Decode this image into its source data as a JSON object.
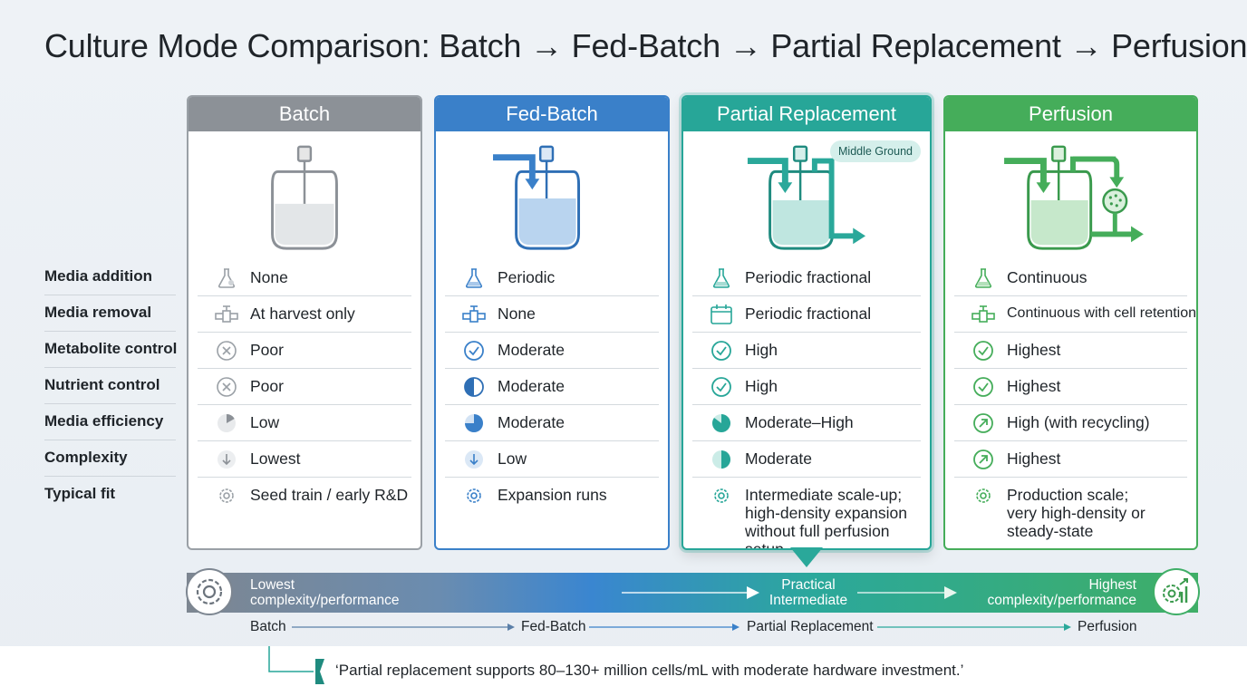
{
  "title": "Culture Mode Comparison: Batch → Fed-Batch → Partial Replacement → Perfusion",
  "row_labels": [
    "Media addition",
    "Media removal",
    "Metabolite control",
    "Nutrient control",
    "Media efficiency",
    "Complexity",
    "Typical fit"
  ],
  "colors": {
    "batch": "#8c9197",
    "fed_batch": "#3a80c9",
    "partial": "#27a698",
    "perfusion": "#45ad5a"
  },
  "columns": [
    {
      "name": "Batch",
      "cells": [
        {
          "icon": "flask-icon",
          "text": "None"
        },
        {
          "icon": "valve-icon",
          "text": "At harvest only"
        },
        {
          "icon": "x-circle-icon",
          "text": "Poor"
        },
        {
          "icon": "x-circle-icon",
          "text": "Poor"
        },
        {
          "icon": "pie-low-icon",
          "text": "Low"
        },
        {
          "icon": "arrow-down-icon",
          "text": "Lowest"
        },
        {
          "icon": "gear-icon",
          "text": "Seed train / early R&D"
        }
      ]
    },
    {
      "name": "Fed-Batch",
      "cells": [
        {
          "icon": "flask-icon",
          "text": "Periodic"
        },
        {
          "icon": "valve-icon",
          "text": "None"
        },
        {
          "icon": "check-circle-icon",
          "text": "Moderate"
        },
        {
          "icon": "half-circle-icon",
          "text": "Moderate"
        },
        {
          "icon": "pie-moderate-icon",
          "text": "Moderate"
        },
        {
          "icon": "arrow-down-icon",
          "text": "Low"
        },
        {
          "icon": "gear-icon",
          "text": "Expansion runs"
        }
      ]
    },
    {
      "name": "Partial Replacement",
      "badge": "Middle Ground",
      "cells": [
        {
          "icon": "flask-icon",
          "text": "Periodic fractional"
        },
        {
          "icon": "calendar-icon",
          "text": "Periodic fractional"
        },
        {
          "icon": "check-circle-icon",
          "text": "High"
        },
        {
          "icon": "check-circle-icon",
          "text": "High"
        },
        {
          "icon": "pie-moderate-high-icon",
          "text": "Moderate–High"
        },
        {
          "icon": "pie-moderate-icon",
          "text": "Moderate"
        },
        {
          "icon": "gear-icon",
          "text": "Intermediate scale-up;\nhigh-density expansion\nwithout full perfusion setup"
        }
      ]
    },
    {
      "name": "Perfusion",
      "cells": [
        {
          "icon": "flask-icon",
          "text": "Continuous"
        },
        {
          "icon": "valve-icon",
          "text": "Continuous with cell retention"
        },
        {
          "icon": "check-circle-icon",
          "text": "Highest"
        },
        {
          "icon": "check-circle-icon",
          "text": "Highest"
        },
        {
          "icon": "arrow-up-right-icon",
          "text": "High (with recycling)"
        },
        {
          "icon": "arrow-up-right-icon",
          "text": "Highest"
        },
        {
          "icon": "gear-icon",
          "text": "Production scale;\nvery high-density or\nsteady-state"
        }
      ]
    }
  ],
  "spectrum": {
    "left_label": "Lowest\ncomplexity/performance",
    "middle_label": "Practical\nIntermediate",
    "right_label": "Highest\ncomplexity/performance",
    "stages": [
      "Batch",
      "Fed-Batch",
      "Partial Replacement",
      "Perfusion"
    ]
  },
  "quote": "‘Partial replacement supports 80–130+ million cells/mL with moderate hardware investment.’"
}
